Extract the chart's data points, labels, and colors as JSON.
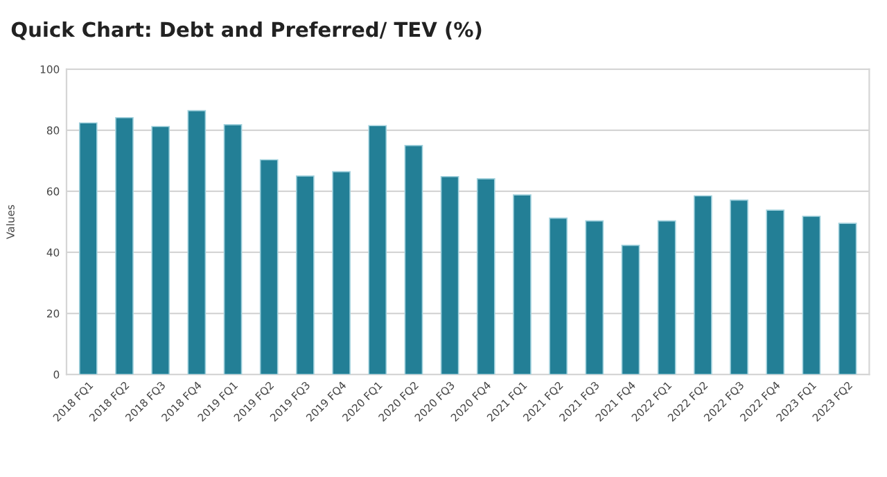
{
  "chart_data": {
    "type": "bar",
    "title": "Quick Chart: Debt and Preferred/ TEV (%)",
    "ylabel": "Values",
    "categories": [
      "2018 FQ1",
      "2018 FQ2",
      "2018 FQ3",
      "2018 FQ4",
      "2019 FQ1",
      "2019 FQ2",
      "2019 FQ3",
      "2019 FQ4",
      "2020 FQ1",
      "2020 FQ2",
      "2020 FQ3",
      "2020 FQ4",
      "2021 FQ1",
      "2021 FQ2",
      "2021 FQ3",
      "2021 FQ4",
      "2022 FQ1",
      "2022 FQ2",
      "2022 FQ3",
      "2022 FQ4",
      "2023 FQ1",
      "2023 FQ2"
    ],
    "values": [
      82.4,
      84.1,
      81.2,
      86.4,
      81.8,
      70.3,
      65.0,
      66.4,
      81.5,
      75.0,
      64.8,
      64.1,
      58.8,
      51.2,
      50.3,
      42.3,
      50.3,
      58.5,
      57.1,
      53.8,
      51.8,
      49.5
    ],
    "color": "#237f96",
    "ylim": [
      0,
      100
    ],
    "yticks": [
      0,
      20,
      40,
      60,
      80,
      100
    ],
    "grid": "y",
    "legend": false
  }
}
